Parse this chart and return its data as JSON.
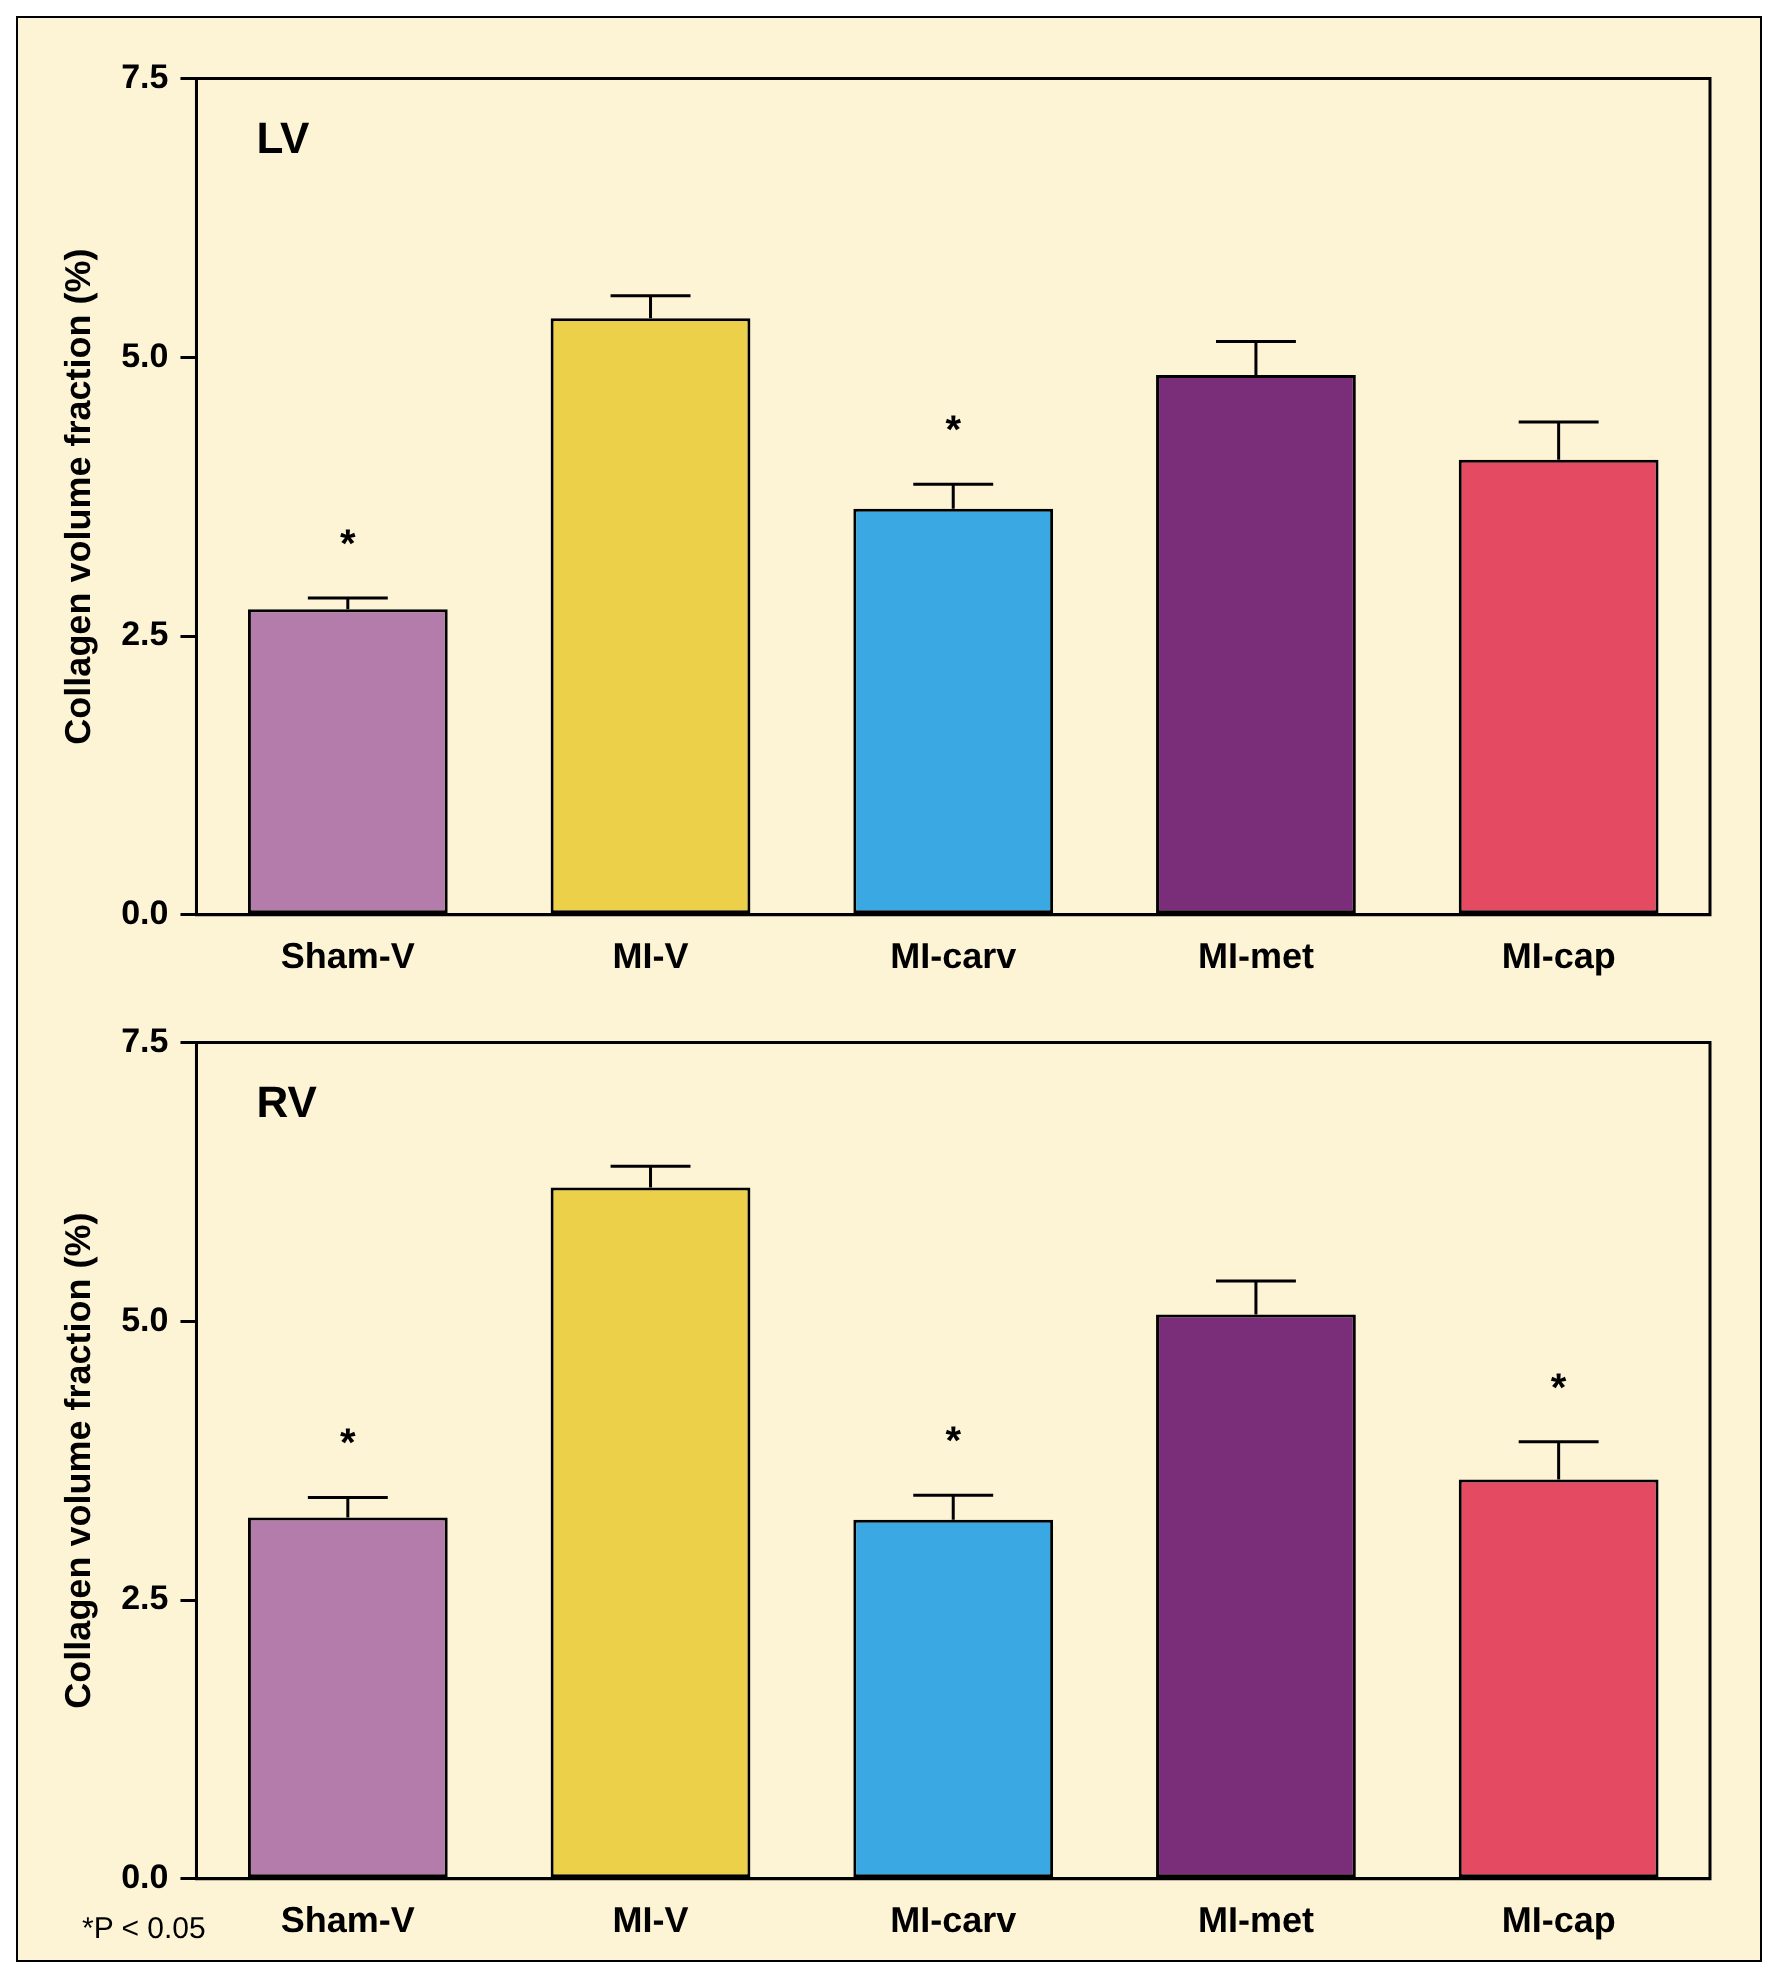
{
  "chart_data": [
    {
      "type": "bar",
      "title": "LV",
      "ylabel": "Collagen volume fraction (%)",
      "categories": [
        "Sham-V",
        "MI-V",
        "MI-carv",
        "MI-met",
        "MI-cap"
      ],
      "values": [
        2.74,
        5.35,
        3.64,
        4.84,
        4.08
      ],
      "colors": [
        "#b47caa",
        "#ecd04a",
        "#3aa8e2",
        "#7a2e7a",
        "#e44a62"
      ],
      "errors": [
        [
          2.74,
          2.84
        ],
        [
          5.35,
          5.55
        ],
        [
          3.64,
          3.86
        ],
        [
          4.84,
          5.14
        ],
        [
          4.08,
          4.42
        ]
      ],
      "value_labels": [
        "*",
        null,
        "*",
        null,
        null
      ],
      "ylim": [
        0,
        7.5
      ],
      "yticks": [
        {
          "value": 0,
          "label": "0.0"
        },
        {
          "value": 2.5,
          "label": "2.5"
        },
        {
          "value": 5,
          "label": "5.0"
        },
        {
          "value": 7.5,
          "label": "7.5"
        }
      ],
      "grid": false,
      "legend": false
    },
    {
      "type": "bar",
      "title": "RV",
      "ylabel": "Collagen volume fraction (%)",
      "categories": [
        "Sham-V",
        "MI-V",
        "MI-carv",
        "MI-met",
        "MI-cap"
      ],
      "values": [
        3.24,
        6.2,
        3.22,
        5.06,
        3.58
      ],
      "colors": [
        "#b47caa",
        "#ecd04a",
        "#3aa8e2",
        "#7a2e7a",
        "#e44a62"
      ],
      "errors": [
        [
          3.24,
          3.42
        ],
        [
          6.2,
          6.39
        ],
        [
          3.22,
          3.44
        ],
        [
          5.06,
          5.36
        ],
        [
          3.58,
          3.92
        ]
      ],
      "value_labels": [
        "*",
        null,
        "*",
        null,
        "*"
      ],
      "annotations": [
        "*P < 0.05"
      ],
      "ylim": [
        0,
        7.5
      ],
      "yticks": [
        {
          "value": 0,
          "label": "0.0"
        },
        {
          "value": 2.5,
          "label": "2.5"
        },
        {
          "value": 5,
          "label": "5.0"
        },
        {
          "value": 7.5,
          "label": "7.5"
        }
      ],
      "grid": false,
      "legend": false
    }
  ]
}
